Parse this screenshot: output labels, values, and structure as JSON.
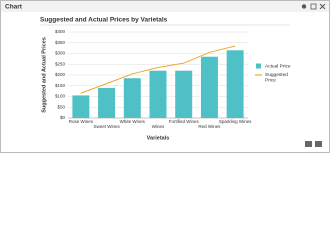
{
  "window": {
    "title": "Chart"
  },
  "chart_data": {
    "type": "bar",
    "title": "Suggested and Actual Prices by Varietals",
    "x_label": "Varietals",
    "y_label": "Suggested and Actual Prices",
    "categories": [
      "Rose Wines",
      "Sweet Wines",
      "White Wines",
      "Wines",
      "Fortified Wines",
      "Red Wines",
      "Sparkling Wines"
    ],
    "series": [
      {
        "name": "Actual Price",
        "type": "bar",
        "color": "#4fc0c5",
        "values": [
          105,
          140,
          185,
          220,
          220,
          285,
          315
        ]
      },
      {
        "name": "Suggested Price",
        "type": "line",
        "color": "#f0a830",
        "values": [
          115,
          160,
          205,
          235,
          255,
          305,
          335
        ]
      }
    ],
    "ylim": [
      0,
      400
    ],
    "yticks": [
      {
        "value": 0,
        "label": "$0"
      },
      {
        "value": 50,
        "label": "$50"
      },
      {
        "value": 100,
        "label": "$100"
      },
      {
        "value": 150,
        "label": "$150"
      },
      {
        "value": 200,
        "label": "$200"
      },
      {
        "value": 250,
        "label": "$250"
      },
      {
        "value": 300,
        "label": "$300"
      },
      {
        "value": 350,
        "label": "$350"
      },
      {
        "value": 400,
        "label": "$400"
      }
    ],
    "grid": true,
    "legend": "right"
  }
}
